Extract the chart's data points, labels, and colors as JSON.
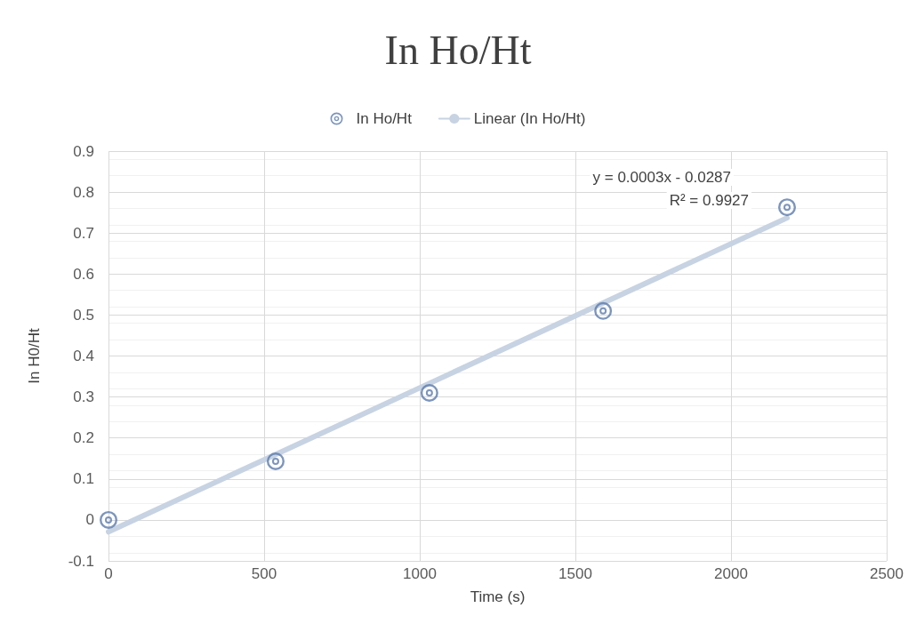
{
  "chart_data": {
    "type": "scatter",
    "title": "In Ho/Ht",
    "xlabel": "Time (s)",
    "ylabel": "In H0/Ht",
    "series": [
      {
        "name": "In Ho/Ht",
        "color": "#5b7bab",
        "x": [
          0,
          537,
          1031,
          1589,
          2180
        ],
        "values": [
          0,
          0.143,
          0.31,
          0.51,
          0.763
        ],
        "marker": "circle"
      },
      {
        "name": "Linear (In Ho/Ht)",
        "type": "line",
        "color": "#c7d3e2",
        "x": [
          0,
          2180
        ],
        "values": [
          -0.029,
          0.737
        ],
        "marker": "none"
      }
    ],
    "annotations": [
      "y = 0.0003x - 0.0287",
      "R² = 0.9927"
    ],
    "xlim": [
      0,
      2500
    ],
    "xticks": [
      0,
      500,
      1000,
      1500,
      2000,
      2500
    ],
    "ylim": [
      -0.1,
      0.9
    ],
    "yticks": [
      -0.1,
      0,
      0.1,
      0.2,
      0.3,
      0.4,
      0.5,
      0.6,
      0.7,
      0.8,
      0.9
    ],
    "grid": true,
    "legend": "top"
  }
}
